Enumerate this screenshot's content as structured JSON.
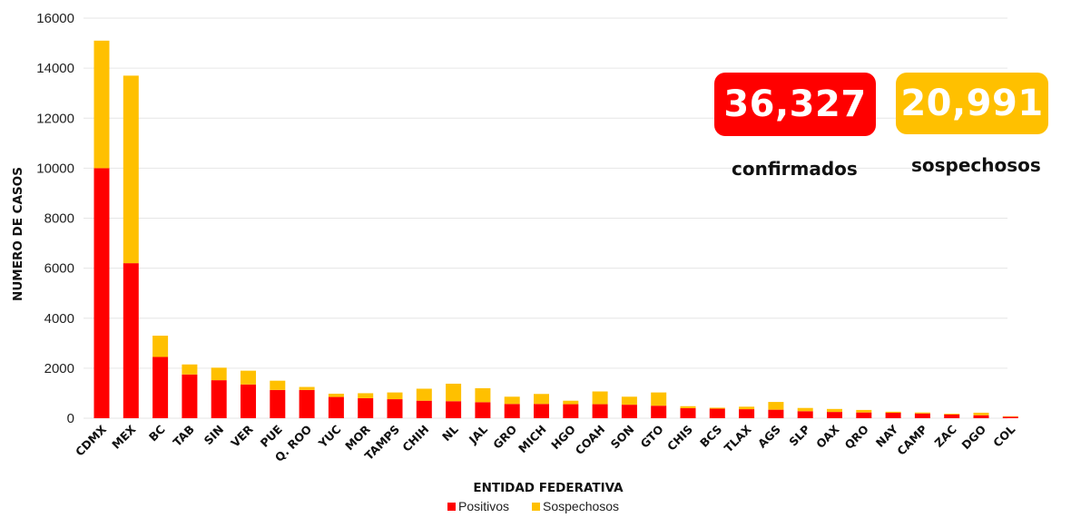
{
  "chart_data": {
    "type": "bar",
    "stacked": true,
    "title": "",
    "xlabel": "ENTIDAD FEDERATIVA",
    "ylabel": "NUMERO DE CASOS",
    "ylim": [
      0,
      16000
    ],
    "yticks": [
      "0",
      "2000",
      "4000",
      "6000",
      "8000",
      "10000",
      "12000",
      "14000",
      "16000"
    ],
    "grid": true,
    "legend_position": "bottom-center",
    "categories": [
      "CDMX",
      "MEX",
      "BC",
      "TAB",
      "SIN",
      "VER",
      "PUE",
      "Q. ROO",
      "YUC",
      "MOR",
      "TAMPS",
      "CHIH",
      "NL",
      "JAL",
      "GRO",
      "MICH",
      "HGO",
      "COAH",
      "SON",
      "GTO",
      "CHIS",
      "BCS",
      "TLAX",
      "AGS",
      "SLP",
      "OAX",
      "QRO",
      "NAY",
      "CAMP",
      "ZAC",
      "DGO",
      "COL"
    ],
    "series": [
      {
        "name": "Positivos",
        "color": "#ff0000",
        "values": [
          10000,
          6200,
          2450,
          1750,
          1520,
          1350,
          1130,
          1130,
          850,
          800,
          760,
          700,
          680,
          640,
          570,
          570,
          560,
          560,
          540,
          500,
          400,
          380,
          360,
          340,
          280,
          250,
          230,
          220,
          190,
          150,
          120,
          60
        ]
      },
      {
        "name": "Sospechosos",
        "color": "#ffc000",
        "values": [
          5100,
          7500,
          850,
          400,
          500,
          550,
          370,
          120,
          130,
          200,
          270,
          480,
          700,
          560,
          290,
          400,
          140,
          510,
          320,
          530,
          80,
          40,
          100,
          310,
          130,
          120,
          100,
          40,
          40,
          30,
          100,
          20
        ]
      }
    ]
  },
  "stats": {
    "confirmed_value": "36,327",
    "confirmed_label": "confirmados",
    "confirmed_color": "#ff0000",
    "suspected_value": "20,991",
    "suspected_label": "sospechosos",
    "suspected_color": "#ffc000"
  }
}
